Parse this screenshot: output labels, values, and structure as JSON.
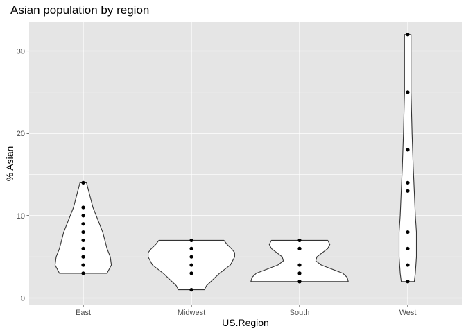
{
  "chart_data": {
    "type": "violin",
    "title": "Asian population by region",
    "xlabel": "US.Region",
    "ylabel": "% Asian",
    "categories": [
      "East",
      "Midwest",
      "South",
      "West"
    ],
    "ylim": [
      -0.8,
      33.5
    ],
    "yticks": [
      0,
      10,
      20,
      30
    ],
    "ytick_labels": [
      "0",
      "10",
      "20",
      "30"
    ],
    "grid": true,
    "legend": "none",
    "colors": {
      "panel": "#e5e5e5",
      "grid": "#ffffff",
      "violin_fill": "#ffffff",
      "violin_stroke": "#333333",
      "point": "#000000",
      "tick_label": "#4d4d4d"
    },
    "points": [
      [
        14,
        11,
        10,
        9,
        8,
        7,
        6,
        5,
        5,
        4,
        4,
        3
      ],
      [
        7,
        6,
        5,
        4,
        3,
        1
      ],
      [
        7,
        6,
        6,
        4,
        3,
        3,
        2,
        2
      ],
      [
        32,
        25,
        18,
        14,
        13,
        8,
        6,
        4,
        2
      ]
    ],
    "violins": [
      {
        "y": [
          3,
          4,
          5,
          6,
          7,
          8,
          9,
          10,
          11,
          12,
          13,
          14
        ],
        "half_width": [
          0.22,
          0.26,
          0.25,
          0.22,
          0.2,
          0.18,
          0.15,
          0.12,
          0.09,
          0.07,
          0.05,
          0.03
        ]
      },
      {
        "y": [
          1,
          1.5,
          2,
          3,
          4,
          5,
          5.5,
          6,
          6.5,
          7
        ],
        "half_width": [
          0.12,
          0.14,
          0.18,
          0.26,
          0.36,
          0.4,
          0.4,
          0.37,
          0.33,
          0.3
        ]
      },
      {
        "y": [
          2,
          2.5,
          3,
          3.5,
          4,
          4.5,
          5,
          6,
          6.5,
          7
        ],
        "half_width": [
          0.45,
          0.44,
          0.4,
          0.3,
          0.2,
          0.15,
          0.16,
          0.26,
          0.28,
          0.26
        ]
      },
      {
        "y": [
          2,
          3,
          5,
          8,
          10,
          13,
          16,
          20,
          25,
          30,
          32
        ],
        "half_width": [
          0.06,
          0.07,
          0.08,
          0.08,
          0.07,
          0.06,
          0.05,
          0.04,
          0.03,
          0.03,
          0.03
        ]
      }
    ]
  }
}
